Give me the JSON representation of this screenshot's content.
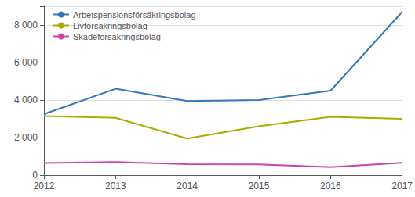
{
  "chart_data": {
    "type": "line",
    "x": [
      2012,
      2013,
      2014,
      2015,
      2016,
      2017
    ],
    "series": [
      {
        "name": "Arbetspensionsförsäkringsbolag",
        "color": "#3377bb",
        "values": [
          3250,
          4600,
          3950,
          4000,
          4500,
          8700
        ]
      },
      {
        "name": "Livförsäkringsbolag",
        "color": "#aaaa00",
        "values": [
          3150,
          3050,
          1950,
          2600,
          3100,
          3000
        ]
      },
      {
        "name": "Skadeförsäkringsbolag",
        "color": "#cc44aa",
        "values": [
          650,
          700,
          580,
          570,
          430,
          660
        ]
      }
    ],
    "xlim": [
      2012,
      2017
    ],
    "xticks": [
      2012,
      2013,
      2014,
      2015,
      2016,
      2017
    ],
    "ylim": [
      0,
      9000
    ],
    "yticks": [
      0,
      {
        "value": 2000,
        "label": "2 000"
      },
      {
        "value": 4000,
        "label": "4 000"
      },
      {
        "value": 6000,
        "label": "6 000"
      },
      {
        "value": 8000,
        "label": "8 000"
      }
    ],
    "grid": true,
    "legend": "upper left"
  }
}
